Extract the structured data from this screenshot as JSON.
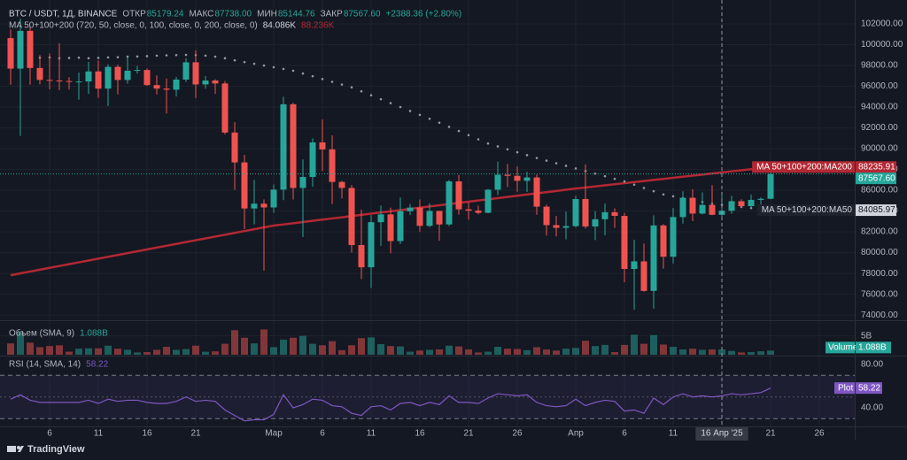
{
  "chart_data": {
    "type": "candlestick",
    "title": "BTC / USDT, 1Д, BINANCE",
    "ohlc_header": [
      {
        "name": "ОТКР",
        "value": "85179.24"
      },
      {
        "name": "МАКС",
        "value": "87738.00"
      },
      {
        "name": "МИН",
        "value": "85144.76"
      },
      {
        "name": "ЗАКР",
        "value": "87567.60"
      }
    ],
    "change": "+2388.36 (+2.80%)",
    "indicator_title": "MA 50+100+200 (720, 50, close, 0, 100, close, 0, 200, close, 0)",
    "categories": [
      null,
      null,
      null,
      null,
      "6",
      null,
      null,
      null,
      null,
      "11",
      null,
      null,
      null,
      null,
      "16",
      null,
      null,
      null,
      null,
      "21",
      null,
      null,
      null,
      null,
      null,
      null,
      null,
      "Мар",
      null,
      null,
      null,
      null,
      "6",
      null,
      null,
      null,
      null,
      "11",
      null,
      null,
      null,
      null,
      "16",
      null,
      null,
      null,
      null,
      "21",
      null,
      null,
      null,
      null,
      "26",
      null,
      null,
      null,
      null,
      null,
      "Апр",
      null,
      null,
      null,
      null,
      "6",
      null,
      null,
      null,
      null,
      "11",
      null,
      null,
      null,
      null,
      "16 Апр '25",
      null,
      null,
      null,
      null,
      "21",
      null,
      null,
      null,
      null,
      "26"
    ],
    "crosshair": "16 Апр '25",
    "open": [
      100635,
      97700,
      101332,
      97763,
      96613,
      96554,
      96506,
      96444,
      96462,
      97430,
      95778,
      97870,
      96608,
      97500,
      97569,
      96118,
      95780,
      95671,
      96644,
      98305,
      96181,
      96554,
      96273,
      91552,
      88680,
      84250,
      84708,
      84349,
      86064,
      94270,
      86220,
      87281,
      90606,
      89931,
      86801,
      86222,
      80734,
      78595,
      82932,
      83680,
      81115,
      83983,
      84338,
      82574,
      84010,
      82715,
      86854,
      84167,
      84043,
      83832,
      86054,
      87498,
      87392,
      86909,
      87232,
      84424,
      82648,
      82389,
      82550,
      85158,
      82516,
      83213,
      83889,
      83537,
      78430,
      79163,
      76322,
      82615,
      79607,
      83423,
      85276,
      83760,
      84591,
      83643,
      84030,
      84947,
      84474,
      85077,
      85179.24,
      null,
      null,
      null,
      null,
      null
    ],
    "high": [
      101456,
      102500,
      101700,
      99000,
      99167,
      100137,
      96880,
      97323,
      98345,
      98478,
      98119,
      98083,
      98826,
      97972,
      97704,
      97046,
      96753,
      96899,
      98711,
      99475,
      96980,
      96670,
      96500,
      92540,
      89414,
      87000,
      85120,
      86558,
      95000,
      94416,
      88967,
      91000,
      92810,
      91283,
      86897,
      86500,
      84123,
      83617,
      84539,
      84336,
      85309,
      84676,
      85117,
      84756,
      84022,
      87000,
      87453,
      84850,
      84513,
      86129,
      88765,
      88539,
      88292,
      87786,
      87515,
      84599,
      83534,
      83943,
      85487,
      88500,
      83998,
      84720,
      84266,
      83817,
      81243,
      80867,
      83588,
      82753,
      84300,
      85905,
      86100,
      85799,
      86496,
      85500,
      85470,
      85132,
      85595,
      85320,
      87738,
      null,
      null,
      null,
      null,
      null
    ],
    "low": [
      96150,
      91231,
      96150,
      96187,
      95707,
      95620,
      95688,
      94713,
      95256,
      94876,
      94088,
      95217,
      96252,
      97223,
      96046,
      95205,
      93388,
      95029,
      96415,
      94871,
      95770,
      95270,
      91370,
      86050,
      82256,
      82716,
      78258,
      83824,
      85050,
      85117,
      81500,
      86334,
      87836,
      84667,
      85218,
      80000,
      77459,
      76606,
      80660,
      79939,
      80818,
      83618,
      82017,
      82456,
      81134,
      82547,
      83655,
      83175,
      83674,
      83795,
      85541,
      86310,
      85861,
      85837,
      83646,
      81644,
      81565,
      81279,
      82429,
      82320,
      81211,
      81659,
      82379,
      77153,
      74508,
      76239,
      74620,
      78464,
      78969,
      82792,
      83034,
      83678,
      83600,
      83111,
      83736,
      84303,
      84290,
      83949,
      85144.76,
      null,
      null,
      null,
      null,
      null
    ],
    "close": [
      97700,
      101332,
      97763,
      96613,
      96554,
      96506,
      96444,
      96462,
      97430,
      95778,
      97870,
      96608,
      97500,
      97569,
      96118,
      95780,
      95671,
      96644,
      98305,
      96181,
      96554,
      96273,
      91552,
      88680,
      84250,
      84708,
      84349,
      86064,
      94270,
      86220,
      87281,
      90606,
      89931,
      86801,
      86222,
      80734,
      78595,
      82932,
      83680,
      81115,
      83983,
      84338,
      82574,
      84010,
      82715,
      86854,
      84167,
      84043,
      83832,
      86054,
      87498,
      87392,
      86909,
      87232,
      84424,
      82648,
      82389,
      82550,
      85158,
      82516,
      83213,
      83889,
      83537,
      78430,
      79163,
      76322,
      82615,
      79607,
      83423,
      85276,
      83760,
      84591,
      83643,
      84030,
      84947,
      84474,
      85077,
      85179.24,
      87567.6,
      null,
      null,
      null,
      null,
      null
    ],
    "close_label": "87567.60",
    "up_color": "#26a69a",
    "down_color": "#ef5350",
    "ma200": {
      "name": "MA 50+100+200:MA200",
      "color": "#b22833",
      "legend_label": "88.236K",
      "last_label": "88235.91",
      "values": [
        77830,
        78007,
        78184,
        78361,
        78538,
        78715,
        78892,
        79069,
        79246,
        79423,
        79600,
        79777,
        79954,
        80131,
        80308,
        80485,
        80662,
        80839,
        81016,
        81193,
        81370,
        81547,
        81724,
        81901,
        82078,
        82255,
        82432,
        82600,
        82715,
        82830,
        82945,
        83060,
        83175,
        83290,
        83405,
        83520,
        83635,
        83750,
        83865,
        83980,
        84095,
        84210,
        84325,
        84440,
        84555,
        84670,
        84785,
        84900,
        85015,
        85130,
        85245,
        85360,
        85475,
        85590,
        85705,
        85820,
        85935,
        86050,
        86165,
        86268,
        86372,
        86475,
        86579,
        86682,
        86786,
        86889,
        86993,
        87096,
        87200,
        87303,
        87407,
        87510,
        87614,
        87717,
        87821,
        87924,
        88028,
        88131,
        88235.91,
        null,
        null,
        null,
        null,
        null
      ]
    },
    "ma50": {
      "name": "MA 50+100+200:MA50",
      "color": "#9598a1",
      "legend_label": "84.086K",
      "last_label": "84085.97",
      "values": [
        null,
        null,
        98800,
        98750,
        98780,
        98700,
        98720,
        98750,
        98700,
        98730,
        98780,
        98800,
        98850,
        98870,
        98900,
        98950,
        98980,
        99000,
        99020,
        99000,
        98950,
        98850,
        98700,
        98500,
        98330,
        98170,
        98000,
        97830,
        97670,
        97500,
        97230,
        96970,
        96700,
        96430,
        96170,
        95900,
        95520,
        95140,
        94760,
        94380,
        94000,
        93625,
        93250,
        92875,
        92500,
        92100,
        91700,
        91300,
        90900,
        90500,
        90220,
        89940,
        89660,
        89380,
        89100,
        88850,
        88600,
        88350,
        88100,
        87850,
        87600,
        87350,
        87100,
        86850,
        86540,
        86220,
        85910,
        85600,
        85420,
        85240,
        85060,
        84880,
        84700,
        84600,
        84500,
        84390,
        84290,
        84190,
        84085.97,
        null,
        null,
        null,
        null,
        null
      ]
    },
    "ylim": [
      73500,
      104300
    ],
    "yticks": [
      {
        "value": 74000,
        "label": "74000.00"
      },
      {
        "value": 76000,
        "label": "76000.00"
      },
      {
        "value": 78000,
        "label": "78000.00"
      },
      {
        "value": 80000,
        "label": "80000.00"
      },
      {
        "value": 82000,
        "label": "82000.00"
      },
      {
        "value": 84000,
        "label": "84000.00"
      },
      {
        "value": 86000,
        "label": "86000.00"
      },
      {
        "value": 88000,
        "label": "88000.00"
      },
      {
        "value": 90000,
        "label": "90000.00"
      },
      {
        "value": 92000,
        "label": "92000.00"
      },
      {
        "value": 94000,
        "label": "94000.00"
      },
      {
        "value": 96000,
        "label": "96000.00"
      },
      {
        "value": 98000,
        "label": "98000.00"
      },
      {
        "value": 100000,
        "label": "100000.00"
      },
      {
        "value": 102000,
        "label": "102000.00"
      }
    ],
    "grid": true,
    "volume": {
      "name": "Объем (SMA, 9)",
      "tag": "Volume",
      "last_label": "1.088B",
      "ylim": [
        0,
        8.9
      ],
      "yticks": [
        {
          "value": 5,
          "label": "5B"
        }
      ],
      "values": [
        3.0,
        6.0,
        3.2,
        2.0,
        2.3,
        2.5,
        0.8,
        1.6,
        1.7,
        1.7,
        2.4,
        1.6,
        1.3,
        0.6,
        0.7,
        1.3,
        2.1,
        1.3,
        1.5,
        2.4,
        0.8,
        0.9,
        2.9,
        6.5,
        4.5,
        3.0,
        6.7,
        2.0,
        4.0,
        4.5,
        5.0,
        2.9,
        2.5,
        3.6,
        1.2,
        2.5,
        4.4,
        4.6,
        2.8,
        2.3,
        2.2,
        0.8,
        1.1,
        1.3,
        1.4,
        2.4,
        2.2,
        1.4,
        0.6,
        0.8,
        2.1,
        1.6,
        1.5,
        1.2,
        2.0,
        1.4,
        1.1,
        1.6,
        1.8,
        3.7,
        2.3,
        2.6,
        0.7,
        2.6,
        5.3,
        2.9,
        5.2,
        2.7,
        2.1,
        1.4,
        1.6,
        1.3,
        1.4,
        1.4,
        1.0,
        0.6,
        0.7,
        0.9,
        1.088,
        null,
        null,
        null,
        null,
        null
      ]
    },
    "rsi": {
      "name": "RSI (14, SMA, 14)",
      "tag": "Plot",
      "color": "#7e57c2",
      "ylim": [
        22.9,
        87.3
      ],
      "band": [
        30,
        70
      ],
      "midline": 50,
      "yticks": [
        {
          "value": 80,
          "label": "80.00"
        },
        {
          "value": 40,
          "label": "40.00"
        }
      ],
      "values": [
        48,
        52,
        47,
        45,
        45,
        45,
        45,
        45,
        47,
        44,
        48,
        46,
        47,
        47,
        45,
        44,
        44,
        46,
        50,
        46,
        47,
        46,
        38,
        33,
        28,
        29,
        29,
        34,
        52,
        40,
        43,
        48,
        47,
        42,
        41,
        35,
        33,
        41,
        42,
        38,
        44,
        45,
        42,
        45,
        43,
        51,
        45,
        45,
        44,
        49,
        53,
        52,
        51,
        52,
        45,
        42,
        41,
        42,
        48,
        42,
        45,
        47,
        46,
        37,
        38,
        35,
        49,
        43,
        50,
        53,
        50,
        51,
        50,
        51,
        53,
        52,
        53,
        54,
        58.22,
        null,
        null,
        null,
        null,
        null
      ]
    },
    "brand": "TradingView"
  }
}
